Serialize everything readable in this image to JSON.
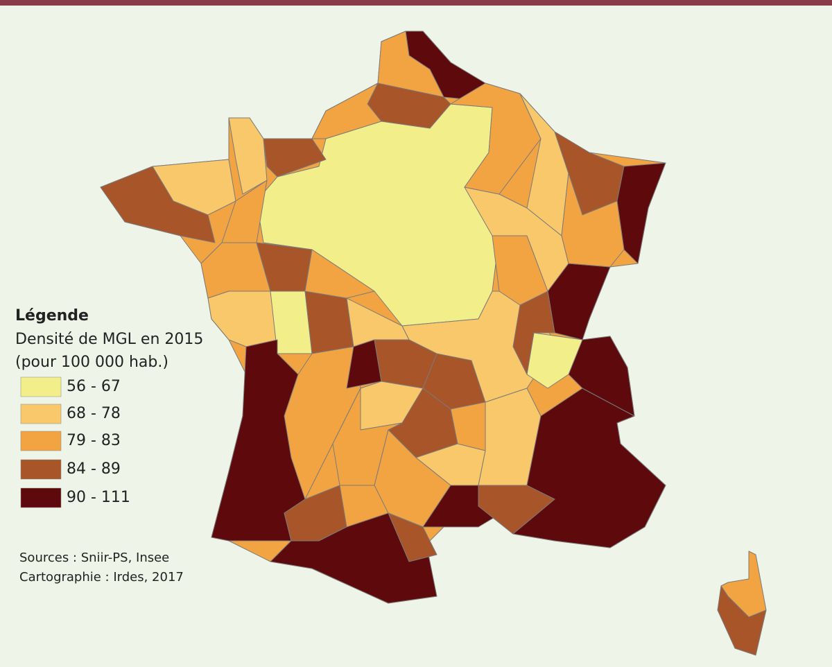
{
  "legend": {
    "title": "Légende",
    "subtitle": "Densité de MGL en 2015",
    "unit": "(pour 100 000 hab.)",
    "classes": [
      {
        "label": "56 - 67",
        "color": "#f2ef8a"
      },
      {
        "label": "68 - 78",
        "color": "#f8c86a"
      },
      {
        "label": "79 - 83",
        "color": "#f2a443"
      },
      {
        "label": "84 - 89",
        "color": "#a8552a"
      },
      {
        "label": "90 - 111",
        "color": "#5e0a0c"
      }
    ]
  },
  "sources": [
    "Sources :  Sniir-PS, Insee",
    "Cartographie : Irdes, 2017"
  ]
}
